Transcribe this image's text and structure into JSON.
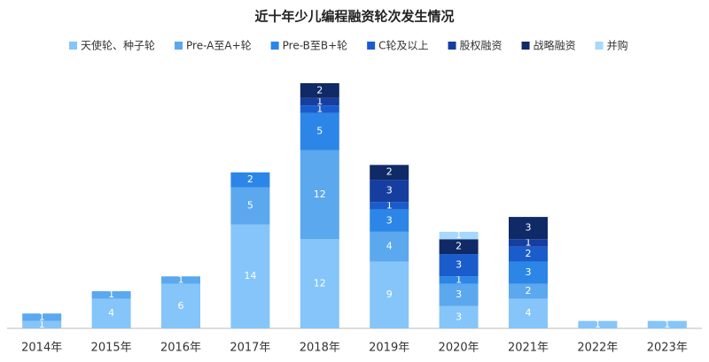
{
  "chart_data": {
    "type": "stacked-bar",
    "title": "近十年少儿编程融资轮次发生情况",
    "categories": [
      "2014年",
      "2015年",
      "2016年",
      "2017年",
      "2018年",
      "2019年",
      "2020年",
      "2021年",
      "2022年",
      "2023年"
    ],
    "series": [
      {
        "name": "天使轮、种子轮",
        "color": "#85c5f9",
        "values": [
          1,
          4,
          6,
          14,
          12,
          9,
          3,
          4,
          1,
          1
        ]
      },
      {
        "name": "Pre-A至A+轮",
        "color": "#5ba8ee",
        "values": [
          1,
          1,
          1,
          5,
          12,
          4,
          3,
          2,
          null,
          null
        ]
      },
      {
        "name": "Pre-B至B+轮",
        "color": "#2b86e8",
        "values": [
          null,
          null,
          null,
          2,
          5,
          3,
          1,
          3,
          null,
          null
        ]
      },
      {
        "name": "C轮及以上",
        "color": "#1a5ccc",
        "values": [
          null,
          null,
          null,
          null,
          1,
          1,
          3,
          2,
          null,
          null
        ]
      },
      {
        "name": "股权融资",
        "color": "#163ea0",
        "values": [
          null,
          null,
          null,
          null,
          1,
          3,
          null,
          1,
          null,
          null
        ]
      },
      {
        "name": "战略融资",
        "color": "#0f2a66",
        "values": [
          null,
          null,
          null,
          null,
          2,
          2,
          2,
          3,
          null,
          null
        ]
      },
      {
        "name": "并购",
        "color": "#a8d8fb",
        "values": [
          null,
          null,
          null,
          null,
          null,
          null,
          1,
          null,
          null,
          null
        ]
      }
    ]
  }
}
